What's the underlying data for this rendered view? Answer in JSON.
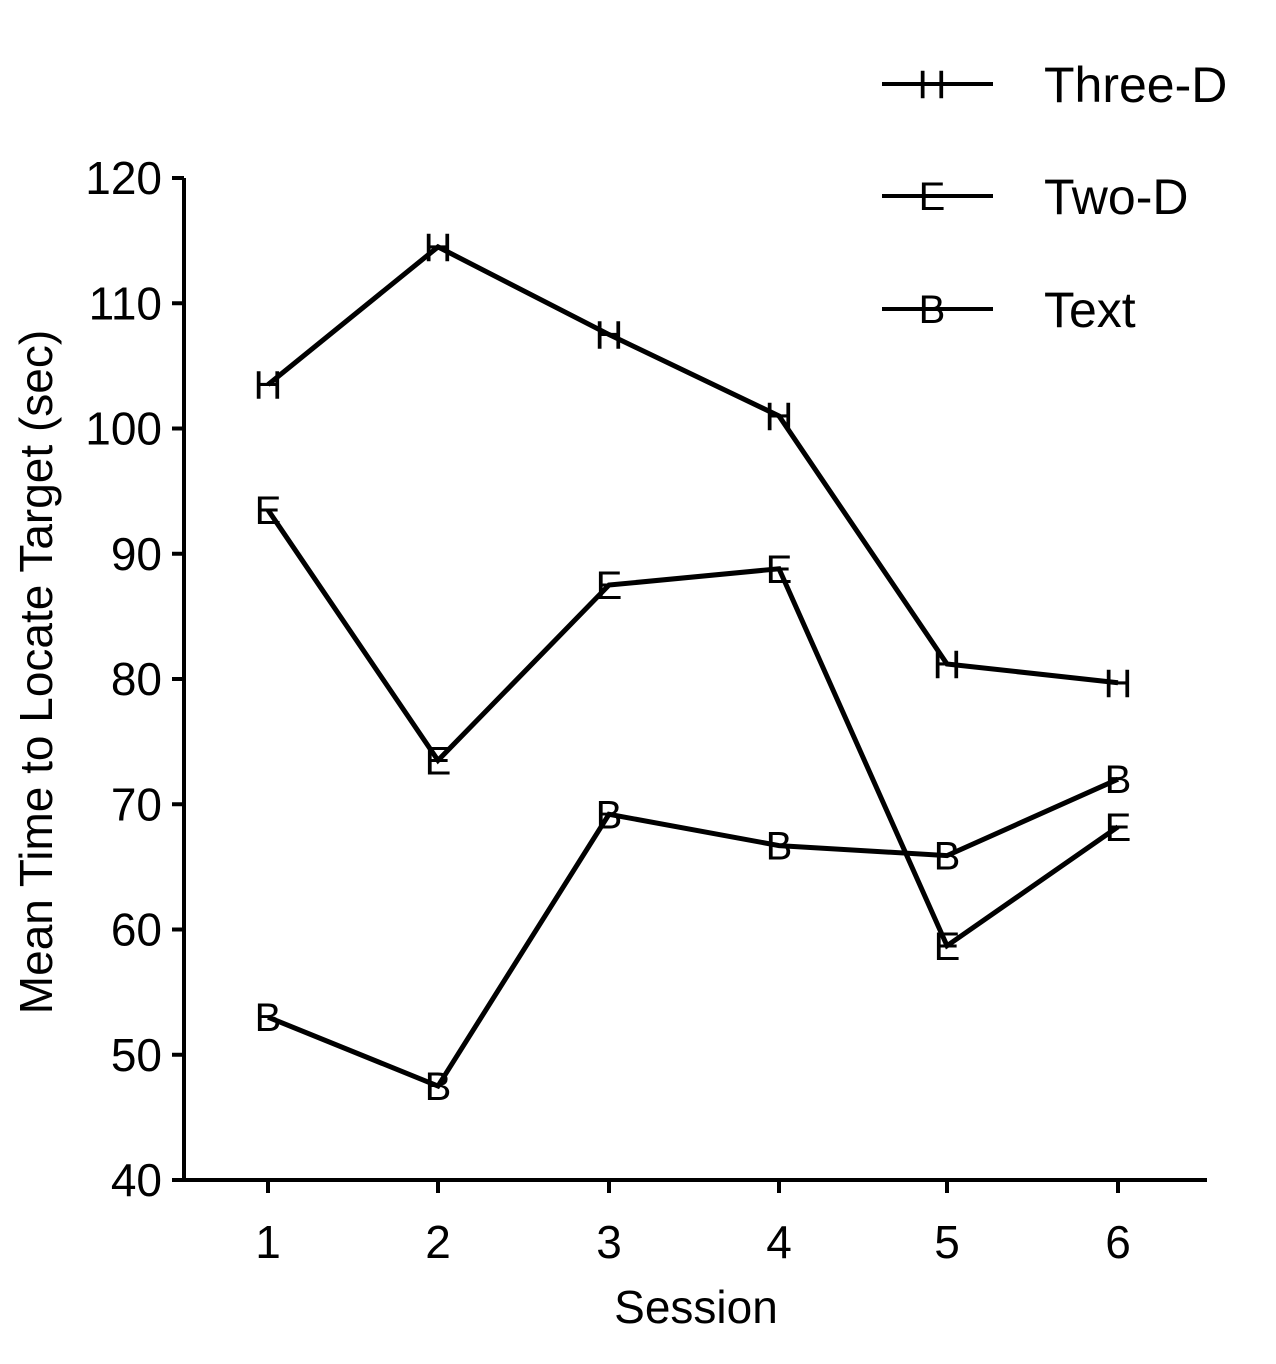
{
  "chart_data": {
    "type": "line",
    "title": "",
    "xlabel": "Session",
    "ylabel": "Mean Time to Locate Target (sec)",
    "x": [
      1,
      2,
      3,
      4,
      5,
      6
    ],
    "x_tick_labels": [
      "1",
      "2",
      "3",
      "4",
      "5",
      "6"
    ],
    "ylim": [
      40,
      120
    ],
    "y_ticks": [
      40,
      50,
      60,
      70,
      80,
      90,
      100,
      110,
      120
    ],
    "y_tick_labels": [
      "40",
      "50",
      "60",
      "70",
      "80",
      "90",
      "100",
      "110",
      "120"
    ],
    "grid": false,
    "legend_position": "top-right",
    "series": [
      {
        "name": "Three-D",
        "marker": "H",
        "values": [
          103.5,
          114.5,
          107.5,
          101.0,
          81.2,
          79.7
        ]
      },
      {
        "name": "Two-D",
        "marker": "E",
        "values": [
          93.5,
          73.5,
          87.5,
          88.8,
          58.7,
          68.2
        ]
      },
      {
        "name": "Text",
        "marker": "B",
        "values": [
          53.0,
          47.5,
          69.2,
          66.7,
          65.9,
          72.0
        ]
      }
    ]
  }
}
